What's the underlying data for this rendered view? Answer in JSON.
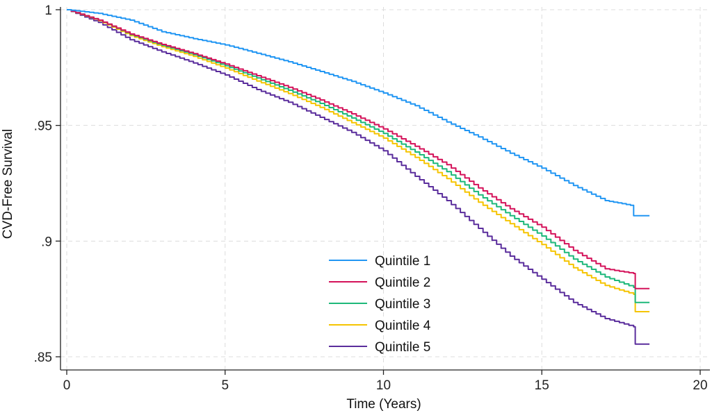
{
  "chart_data": {
    "type": "line",
    "title": "",
    "xlabel": "Time (Years)",
    "ylabel": "CVD-Free Survival",
    "xlim": [
      0,
      20
    ],
    "ylim": [
      0.85,
      1.0
    ],
    "xticks": [
      0,
      5,
      10,
      15,
      20
    ],
    "xtick_labels": [
      "0",
      "5",
      "10",
      "15",
      "20"
    ],
    "yticks": [
      1.0,
      0.95,
      0.9,
      0.85
    ],
    "ytick_labels": [
      "1",
      ".95",
      ".9",
      ".85"
    ],
    "grid": true,
    "legend_position": "bottom-center",
    "series": [
      {
        "name": "Quintile 1",
        "color": "#2196f3",
        "points": [
          [
            0,
            1.0
          ],
          [
            1,
            0.9984
          ],
          [
            2,
            0.9955
          ],
          [
            3,
            0.9905
          ],
          [
            4,
            0.9875
          ],
          [
            5,
            0.9848
          ],
          [
            6,
            0.9812
          ],
          [
            7,
            0.9775
          ],
          [
            8,
            0.9733
          ],
          [
            9,
            0.969
          ],
          [
            10,
            0.964
          ],
          [
            11,
            0.9585
          ],
          [
            12,
            0.9515
          ],
          [
            13,
            0.945
          ],
          [
            14,
            0.938
          ],
          [
            15,
            0.9315
          ],
          [
            16,
            0.924
          ],
          [
            17,
            0.9175
          ],
          [
            17.8,
            0.9155
          ],
          [
            17.9,
            0.911
          ],
          [
            18.4,
            0.911
          ]
        ]
      },
      {
        "name": "Quintile 2",
        "color": "#d41159",
        "points": [
          [
            0,
            1.0
          ],
          [
            1,
            0.9955
          ],
          [
            2,
            0.9895
          ],
          [
            3,
            0.985
          ],
          [
            4,
            0.981
          ],
          [
            5,
            0.9765
          ],
          [
            6,
            0.9715
          ],
          [
            7,
            0.9665
          ],
          [
            8,
            0.961
          ],
          [
            9,
            0.955
          ],
          [
            10,
            0.9485
          ],
          [
            11,
            0.941
          ],
          [
            12,
            0.933
          ],
          [
            13,
            0.923
          ],
          [
            14,
            0.914
          ],
          [
            15,
            0.906
          ],
          [
            16,
            0.896
          ],
          [
            17,
            0.888
          ],
          [
            17.9,
            0.886
          ],
          [
            17.95,
            0.8795
          ],
          [
            18.4,
            0.8795
          ]
        ]
      },
      {
        "name": "Quintile 3",
        "color": "#1db87a",
        "points": [
          [
            0,
            1.0
          ],
          [
            1,
            0.9955
          ],
          [
            2,
            0.9893
          ],
          [
            3,
            0.9846
          ],
          [
            4,
            0.9806
          ],
          [
            5,
            0.9758
          ],
          [
            6,
            0.9705
          ],
          [
            7,
            0.9652
          ],
          [
            8,
            0.9595
          ],
          [
            9,
            0.9532
          ],
          [
            10,
            0.9465
          ],
          [
            11,
            0.9385
          ],
          [
            12,
            0.93
          ],
          [
            13,
            0.92
          ],
          [
            14,
            0.911
          ],
          [
            15,
            0.9022
          ],
          [
            16,
            0.8922
          ],
          [
            17,
            0.8845
          ],
          [
            17.9,
            0.88
          ],
          [
            17.95,
            0.8735
          ],
          [
            18.4,
            0.8735
          ]
        ]
      },
      {
        "name": "Quintile 4",
        "color": "#f5c400",
        "points": [
          [
            0,
            1.0
          ],
          [
            1,
            0.9953
          ],
          [
            2,
            0.9888
          ],
          [
            3,
            0.984
          ],
          [
            4,
            0.9798
          ],
          [
            5,
            0.9748
          ],
          [
            6,
            0.9692
          ],
          [
            7,
            0.9638
          ],
          [
            8,
            0.9578
          ],
          [
            9,
            0.9512
          ],
          [
            10,
            0.9445
          ],
          [
            11,
            0.9362
          ],
          [
            12,
            0.927
          ],
          [
            13,
            0.9168
          ],
          [
            14,
            0.9075
          ],
          [
            15,
            0.8985
          ],
          [
            16,
            0.8885
          ],
          [
            17,
            0.8808
          ],
          [
            17.9,
            0.877
          ],
          [
            17.95,
            0.8695
          ],
          [
            18.4,
            0.8695
          ]
        ]
      },
      {
        "name": "Quintile 5",
        "color": "#5a2d9c",
        "points": [
          [
            0,
            1.0
          ],
          [
            1,
            0.9945
          ],
          [
            2,
            0.987
          ],
          [
            3,
            0.9818
          ],
          [
            4,
            0.977
          ],
          [
            5,
            0.9718
          ],
          [
            6,
            0.9655
          ],
          [
            7,
            0.96
          ],
          [
            8,
            0.9535
          ],
          [
            9,
            0.947
          ],
          [
            10,
            0.939
          ],
          [
            11,
            0.928
          ],
          [
            12,
            0.9175
          ],
          [
            13,
            0.9055
          ],
          [
            14,
            0.8935
          ],
          [
            15,
            0.8835
          ],
          [
            16,
            0.8735
          ],
          [
            17,
            0.8665
          ],
          [
            17.9,
            0.863
          ],
          [
            17.95,
            0.8555
          ],
          [
            18.4,
            0.8555
          ]
        ]
      }
    ]
  }
}
